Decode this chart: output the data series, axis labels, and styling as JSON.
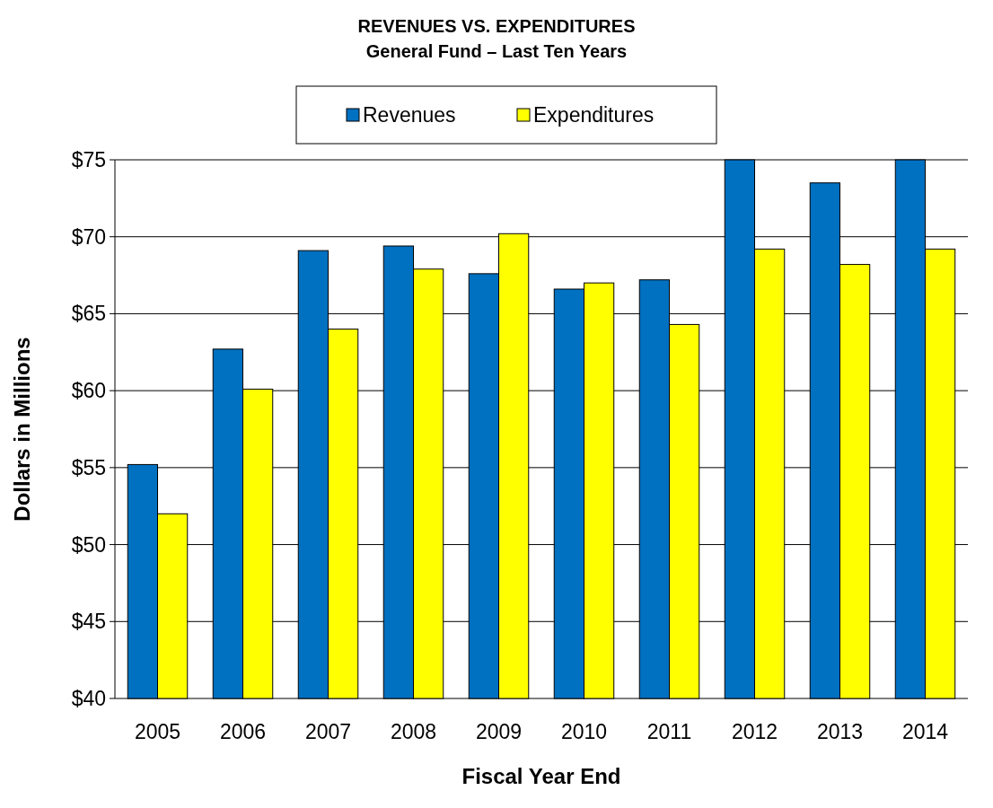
{
  "chart_data": {
    "type": "bar",
    "title": "REVENUES VS. EXPENDITURES",
    "subtitle": "General Fund – Last Ten Years",
    "xlabel": "Fiscal Year End",
    "ylabel": "Dollars in Millions",
    "categories": [
      "2005",
      "2006",
      "2007",
      "2008",
      "2009",
      "2010",
      "2011",
      "2012",
      "2013",
      "2014"
    ],
    "series": [
      {
        "name": "Revenues",
        "color": "#0070c0",
        "values": [
          55.2,
          62.7,
          69.1,
          69.4,
          67.6,
          66.6,
          67.2,
          75.0,
          73.5,
          75.0
        ]
      },
      {
        "name": "Expenditures",
        "color": "#ffff00",
        "values": [
          52.0,
          60.1,
          64.0,
          67.9,
          70.2,
          67.0,
          64.3,
          69.2,
          68.2,
          69.2
        ]
      }
    ],
    "ylim": [
      40,
      75
    ],
    "yticks": [
      {
        "value": 40,
        "label": "$40"
      },
      {
        "value": 45,
        "label": "$45"
      },
      {
        "value": 50,
        "label": "$50"
      },
      {
        "value": 55,
        "label": "$55"
      },
      {
        "value": 60,
        "label": "$60"
      },
      {
        "value": 65,
        "label": "$65"
      },
      {
        "value": 70,
        "label": "$70"
      },
      {
        "value": 75,
        "label": "$75"
      }
    ],
    "grid": "y",
    "legend": "top"
  }
}
